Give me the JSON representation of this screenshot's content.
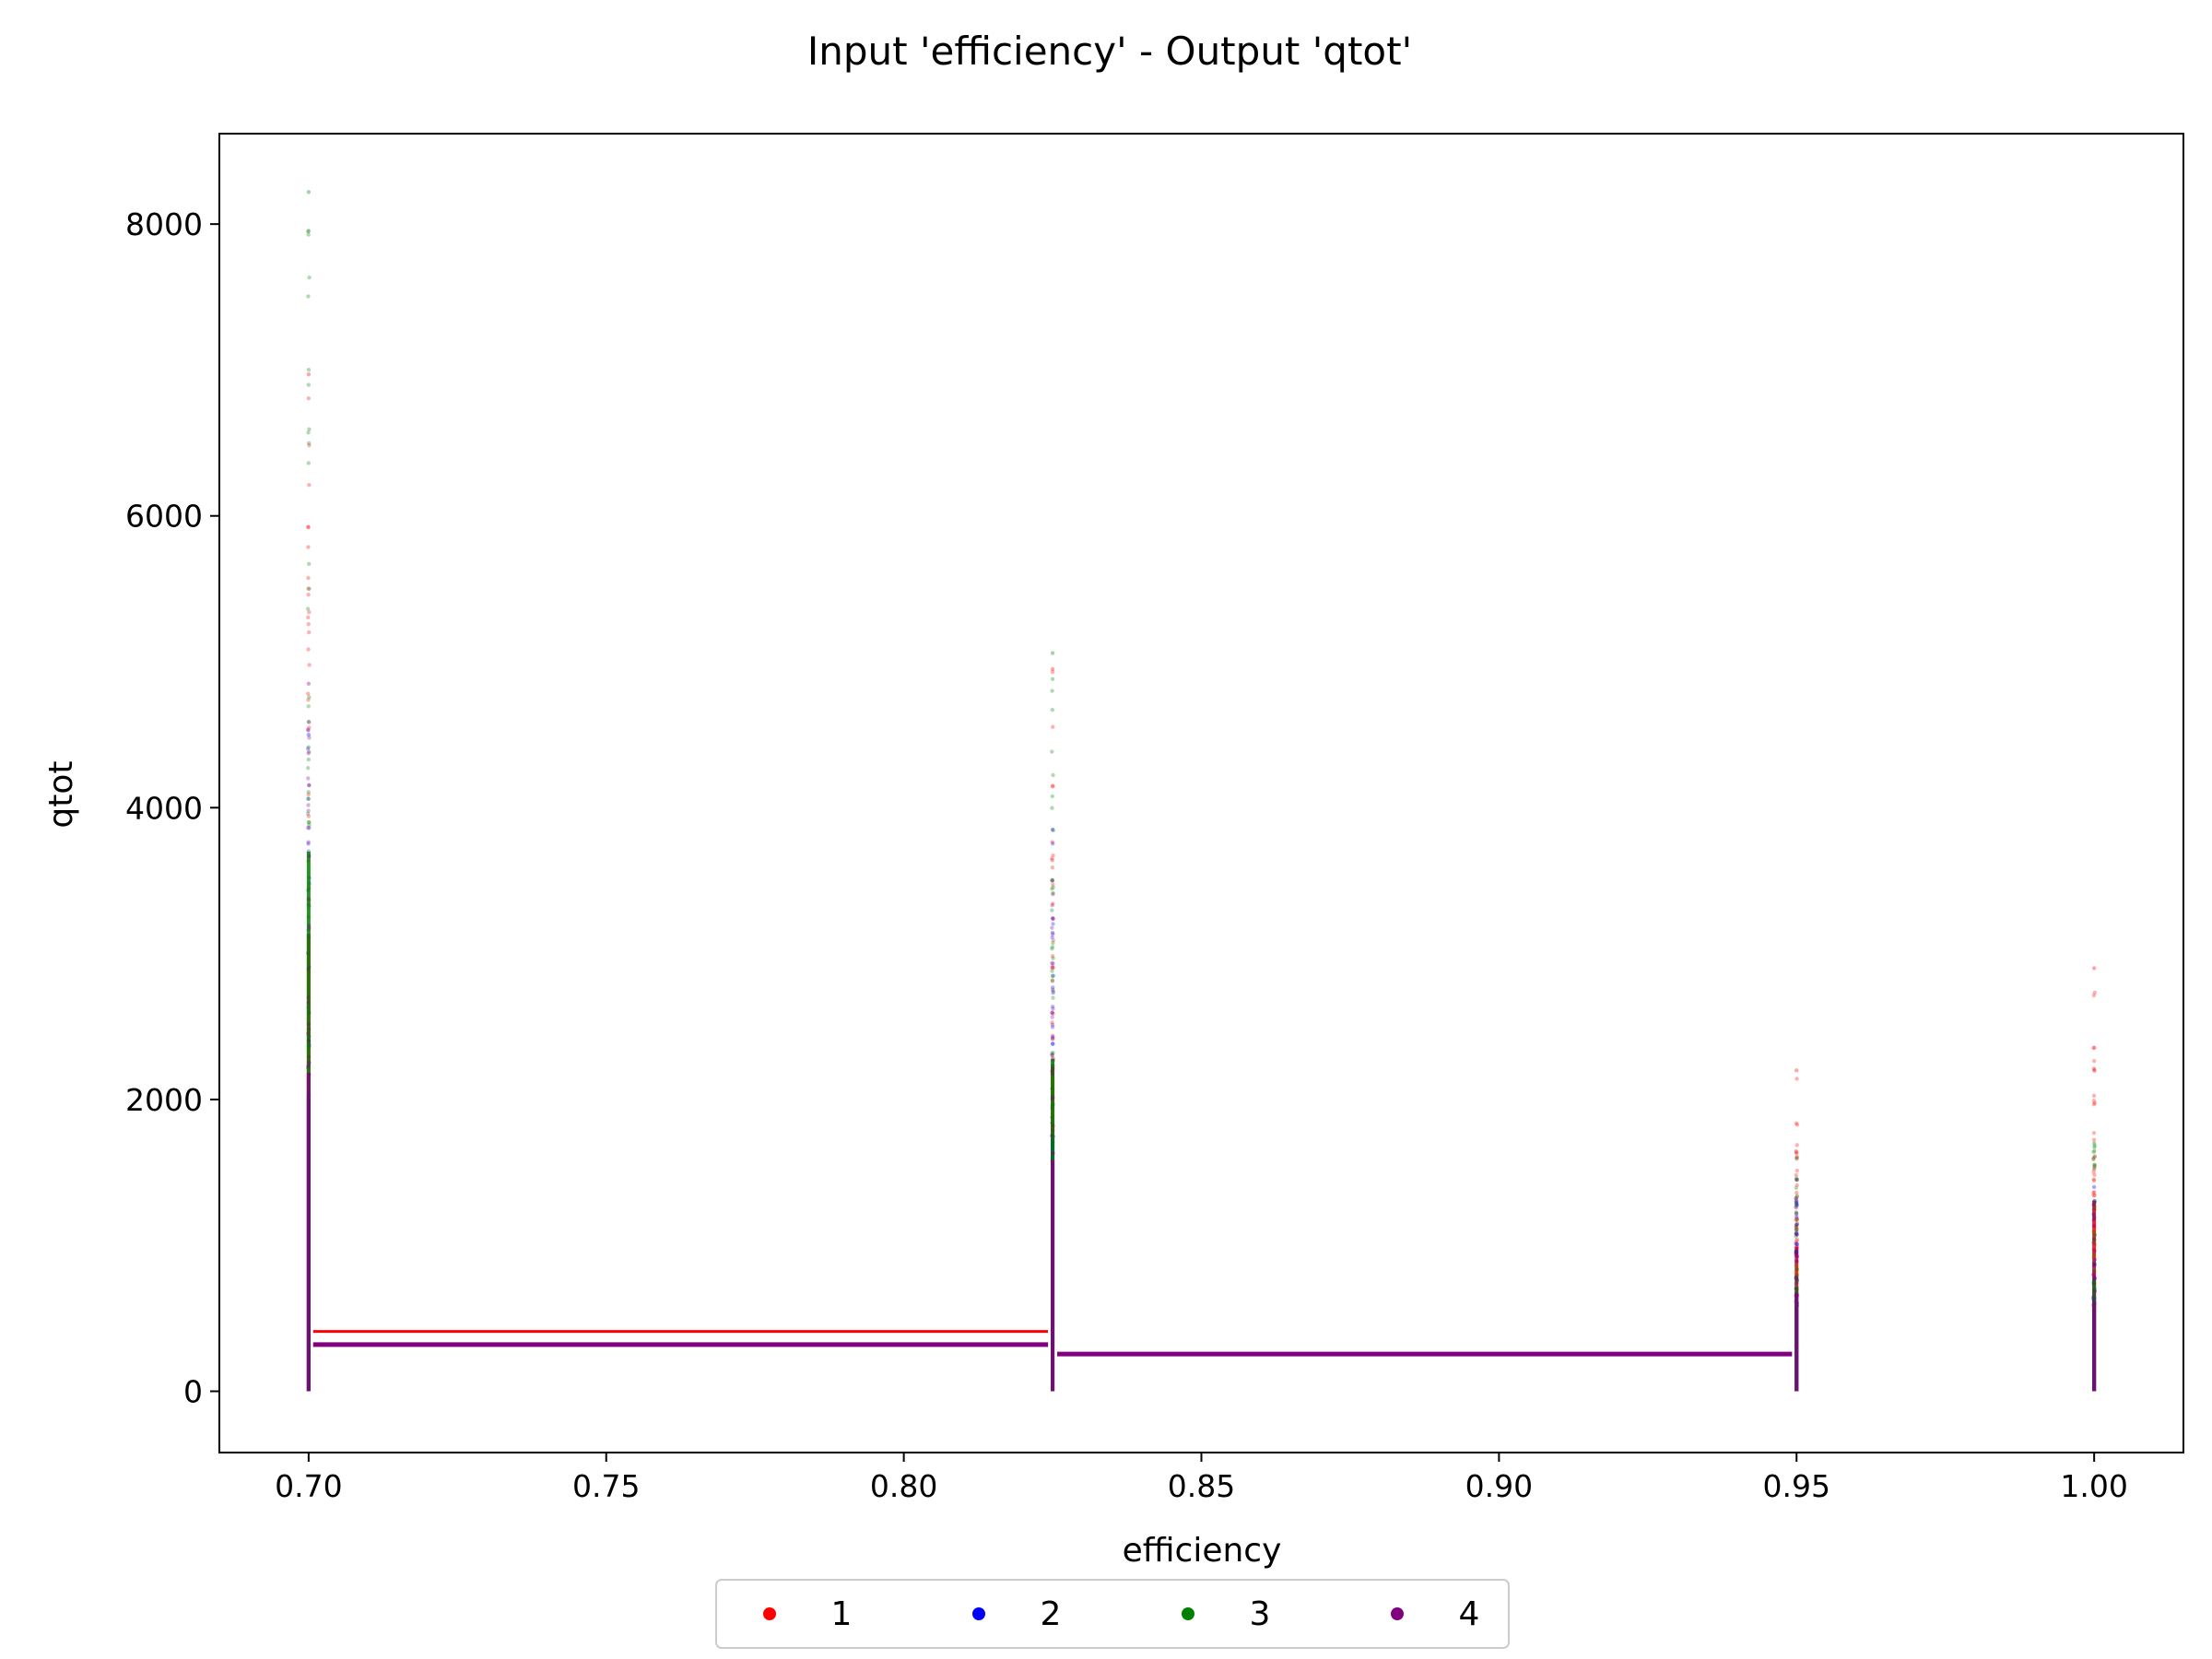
{
  "chart_data": {
    "type": "scatter",
    "title": "Input 'efficiency' - Output 'qtot'",
    "xlabel": "efficiency",
    "ylabel": "qtot",
    "xlim": [
      0.685,
      1.015
    ],
    "ylim": [
      -420,
      8620
    ],
    "xticks": [
      0.7,
      0.75,
      0.8,
      0.85,
      0.9,
      0.95,
      1.0
    ],
    "xtick_labels": [
      "0.70",
      "0.75",
      "0.80",
      "0.85",
      "0.90",
      "0.95",
      "1.00"
    ],
    "yticks": [
      0,
      2000,
      4000,
      6000,
      8000
    ],
    "ytick_labels": [
      "0",
      "2000",
      "4000",
      "6000",
      "8000"
    ],
    "grid": false,
    "legend_placement": "bottom-center",
    "x_levels": [
      0.7,
      0.825,
      0.95,
      1.0
    ],
    "series": [
      {
        "name": "1",
        "color": "#ff0000",
        "points": [
          {
            "x": 0.7,
            "ymin": 0,
            "ymax": 6970
          },
          {
            "x": 0.825,
            "ymin": 0,
            "ymax": 4950
          },
          {
            "x": 0.95,
            "ymin": 0,
            "ymax": 2200
          },
          {
            "x": 1.0,
            "ymin": 0,
            "ymax": 2900
          }
        ],
        "median_steps": [
          {
            "x0": 0.7,
            "x1": 0.825,
            "y": 410
          },
          {
            "x0": 0.825,
            "x1": 0.95,
            "y": 255
          }
        ]
      },
      {
        "name": "2",
        "color": "#0000ff",
        "points": [
          {
            "x": 0.7,
            "ymin": 0,
            "ymax": 4500
          },
          {
            "x": 0.825,
            "ymin": 0,
            "ymax": 3850
          },
          {
            "x": 0.95,
            "ymin": 0,
            "ymax": 1300
          },
          {
            "x": 1.0,
            "ymin": 0,
            "ymax": 1400
          }
        ],
        "median_steps": [
          {
            "x0": 0.7,
            "x1": 0.825,
            "y": 320
          },
          {
            "x0": 0.825,
            "x1": 0.95,
            "y": 255
          }
        ]
      },
      {
        "name": "3",
        "color": "#008000",
        "points": [
          {
            "x": 0.7,
            "ymin": 0,
            "ymax": 8220
          },
          {
            "x": 0.825,
            "ymin": 0,
            "ymax": 5060
          },
          {
            "x": 0.95,
            "ymin": 0,
            "ymax": 1600
          },
          {
            "x": 1.0,
            "ymin": 0,
            "ymax": 1700
          }
        ],
        "median_steps": [
          {
            "x0": 0.7,
            "x1": 0.825,
            "y": 320
          },
          {
            "x0": 0.825,
            "x1": 0.95,
            "y": 255
          }
        ]
      },
      {
        "name": "4",
        "color": "#800080",
        "points": [
          {
            "x": 0.7,
            "ymin": 0,
            "ymax": 4850
          },
          {
            "x": 0.825,
            "ymin": 0,
            "ymax": 3500
          },
          {
            "x": 0.95,
            "ymin": 0,
            "ymax": 1450
          },
          {
            "x": 1.0,
            "ymin": 0,
            "ymax": 1300
          }
        ],
        "median_steps": [
          {
            "x0": 0.7,
            "x1": 0.825,
            "y": 320
          },
          {
            "x0": 0.825,
            "x1": 0.95,
            "y": 255
          }
        ]
      }
    ]
  }
}
